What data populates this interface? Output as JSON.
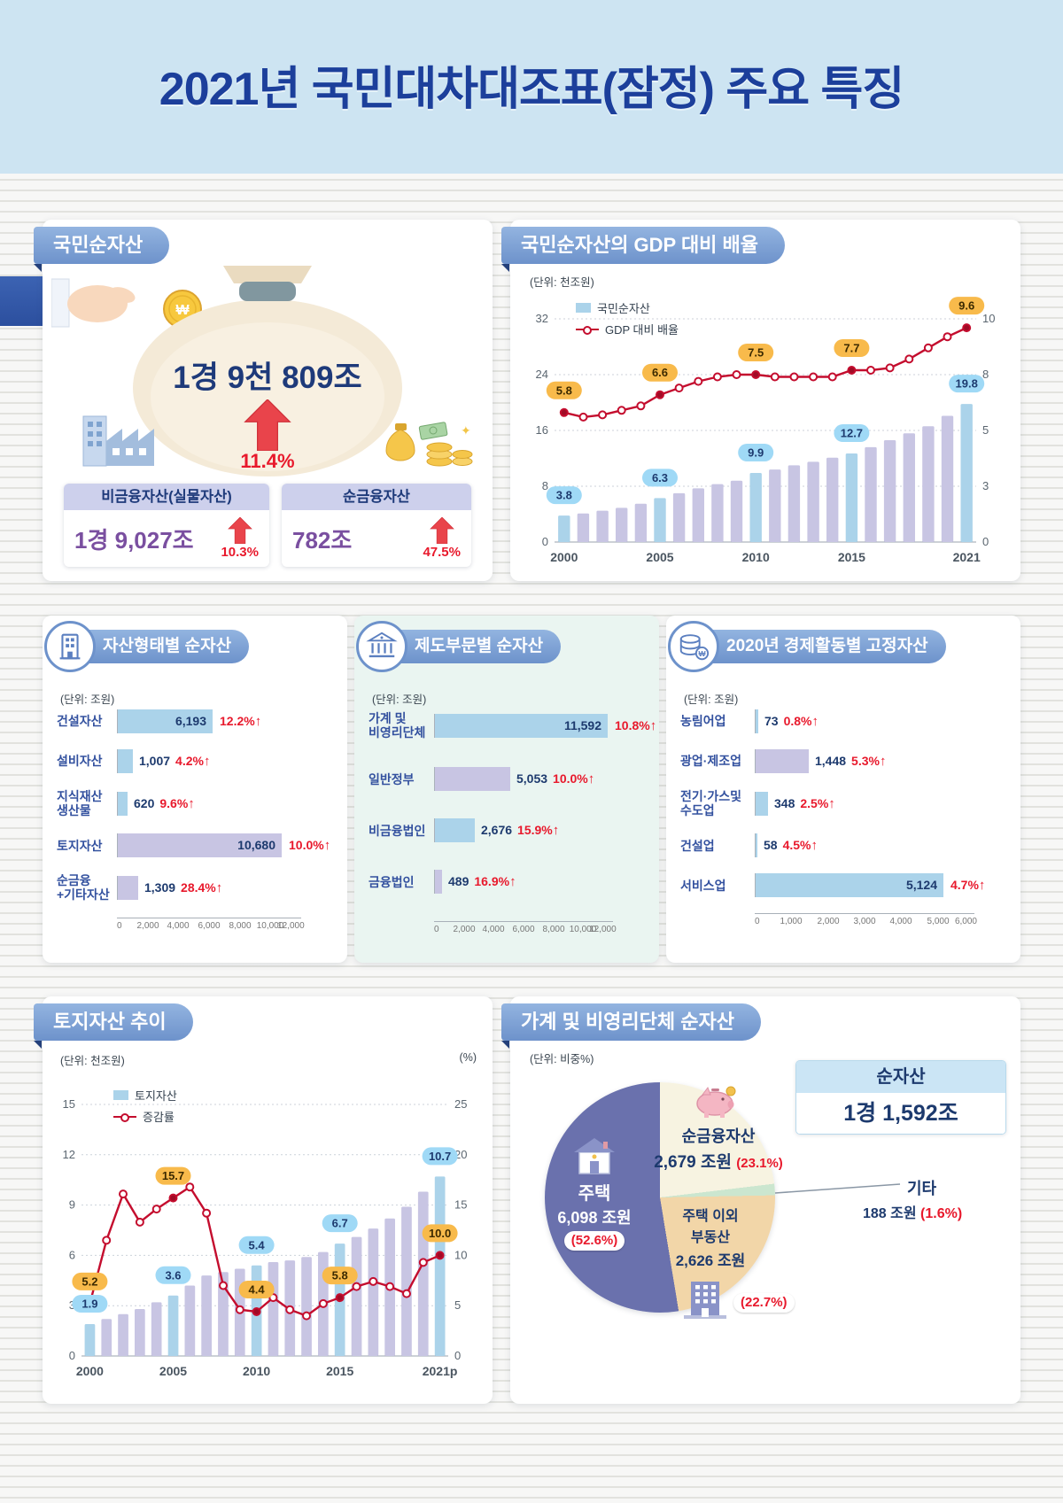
{
  "page": {
    "title": "2021년 국민대차대조표(잠정) 주요 특징"
  },
  "colors": {
    "bar_blue": "#abd3ea",
    "bar_purple": "#c8c5e3",
    "line_red": "#c40d2e",
    "marker_fill": "#a00b26",
    "callout_bar_bg": "#9fd9f6",
    "callout_line_bg": "#f8ba4b",
    "navy": "#1d3a6e",
    "red": "#e8192c"
  },
  "net_assets_panel": {
    "header": "국민순자산",
    "total_value": "1경 9천 809조",
    "total_growth": "11.4%",
    "cards": [
      {
        "label": "비금융자산(실물자산)",
        "value": "1경 9,027조",
        "growth": "10.3%"
      },
      {
        "label": "순금융자산",
        "value": "782조",
        "growth": "47.5%"
      }
    ]
  },
  "gdp_panel": {
    "header": "국민순자산의 GDP 대비 배율",
    "unit": "(단위: 천조원)",
    "legend_bar": "국민순자산",
    "legend_line": "GDP 대비 배율"
  },
  "asset_type_panel": {
    "header": "자산형태별 순자산",
    "unit": "(단위: 조원)"
  },
  "sector_panel": {
    "header": "제도부문별 순자산",
    "unit": "(단위: 조원)"
  },
  "activity_panel": {
    "header": "2020년 경제활동별 고정자산",
    "unit": "(단위: 조원)"
  },
  "land_panel": {
    "header": "토지자산 추이",
    "unit_left": "(단위: 천조원)",
    "unit_right": "(%)",
    "legend_bar": "토지자산",
    "legend_line": "증감률"
  },
  "household_panel": {
    "header": "가계 및 비영리단체 순자산",
    "unit": "(단위: 비중%)",
    "box_title": "순자산",
    "box_value": "1경 1,592조",
    "labels": {
      "financial_name": "순금융자산",
      "financial_value": "2,679 조원",
      "financial_pct": "(23.1%)",
      "housing_name": "주택",
      "housing_value": "6,098 조원",
      "housing_pct": "(52.6%)",
      "other_re_line1": "주택 이외",
      "other_re_line2": "부동산",
      "other_re_value": "2,626 조원",
      "other_re_pct": "(22.7%)",
      "etc_name": "기타",
      "etc_value": "188 조원",
      "etc_pct": "(1.6%)"
    }
  },
  "chart_data": [
    {
      "id": "gdp_combo",
      "type": "bar+line",
      "title": "국민순자산의 GDP 대비 배율",
      "x": [
        2000,
        2001,
        2002,
        2003,
        2004,
        2005,
        2006,
        2007,
        2008,
        2009,
        2010,
        2011,
        2012,
        2013,
        2014,
        2015,
        2016,
        2017,
        2018,
        2019,
        2020,
        2021
      ],
      "series": [
        {
          "name": "국민순자산",
          "type": "bar",
          "unit": "천조원",
          "values": [
            3.8,
            4.1,
            4.5,
            4.9,
            5.5,
            6.3,
            7.0,
            7.7,
            8.3,
            8.8,
            9.9,
            10.4,
            11.0,
            11.5,
            12.1,
            12.7,
            13.6,
            14.6,
            15.6,
            16.6,
            18.1,
            19.8
          ]
        },
        {
          "name": "GDP 대비 배율",
          "type": "line",
          "unit": "배",
          "values": [
            5.8,
            5.6,
            5.7,
            5.9,
            6.1,
            6.6,
            6.9,
            7.2,
            7.4,
            7.5,
            7.5,
            7.4,
            7.4,
            7.4,
            7.4,
            7.7,
            7.7,
            7.8,
            8.2,
            8.7,
            9.2,
            9.6
          ]
        }
      ],
      "labeled_years": [
        2000,
        2005,
        2010,
        2015,
        2021
      ],
      "x_tick_labels": [
        "2000",
        "2005",
        "2010",
        "2015",
        "2021"
      ],
      "bar_labels": {
        "2000": "3.8",
        "2005": "6.3",
        "2010": "9.9",
        "2015": "12.7",
        "2021": "19.8"
      },
      "line_labels": {
        "2000": "5.8",
        "2005": "6.6",
        "2010": "7.5",
        "2015": "7.7",
        "2021": "9.6"
      },
      "left_axis": [
        0,
        8,
        16,
        24,
        32
      ],
      "right_axis": [
        0,
        3,
        5,
        8,
        10
      ]
    },
    {
      "id": "asset_type",
      "type": "hbar",
      "title": "자산형태별 순자산",
      "categories": [
        [
          "건설자산"
        ],
        [
          "설비자산"
        ],
        [
          "지식재산",
          "생산물"
        ],
        [
          "토지자산"
        ],
        [
          "순금융",
          "+기타자산"
        ]
      ],
      "values": [
        6193,
        1007,
        620,
        10680,
        1309
      ],
      "value_labels": [
        "6,193",
        "1,007",
        "620",
        "10,680",
        "1,309"
      ],
      "growth_labels": [
        "12.2%",
        "4.2%",
        "9.6%",
        "10.0%",
        "28.4%"
      ],
      "colors": [
        "blue",
        "blue",
        "blue",
        "purple",
        "purple"
      ],
      "xlim": [
        0,
        12000
      ],
      "x_ticks": [
        "0",
        "2,000",
        "4,000",
        "6,000",
        "8,000",
        "10,000",
        "12,000"
      ]
    },
    {
      "id": "sector",
      "type": "hbar",
      "title": "제도부문별 순자산",
      "categories": [
        [
          "가계 및",
          "비영리단체"
        ],
        [
          "일반정부"
        ],
        [
          "비금융법인"
        ],
        [
          "금융법인"
        ]
      ],
      "values": [
        11592,
        5053,
        2676,
        489
      ],
      "value_labels": [
        "11,592",
        "5,053",
        "2,676",
        "489"
      ],
      "growth_labels": [
        "10.8%",
        "10.0%",
        "15.9%",
        "16.9%"
      ],
      "colors": [
        "blue",
        "purple",
        "blue",
        "purple"
      ],
      "xlim": [
        0,
        12000
      ],
      "x_ticks": [
        "0",
        "2,000",
        "4,000",
        "6,000",
        "8,000",
        "10,000",
        "12,000"
      ]
    },
    {
      "id": "activity",
      "type": "hbar",
      "title": "2020년 경제활동별 고정자산",
      "categories": [
        [
          "농림어업"
        ],
        [
          "광업·제조업"
        ],
        [
          "전기·가스및",
          "수도업"
        ],
        [
          "건설업"
        ],
        [
          "서비스업"
        ]
      ],
      "values": [
        73,
        1448,
        348,
        58,
        5124
      ],
      "value_labels": [
        "73",
        "1,448",
        "348",
        "58",
        "5,124"
      ],
      "growth_labels": [
        "0.8%",
        "5.3%",
        "2.5%",
        "4.5%",
        "4.7%"
      ],
      "colors": [
        "blue",
        "purple",
        "blue",
        "blue",
        "blue"
      ],
      "xlim": [
        0,
        6000
      ],
      "x_ticks": [
        "0",
        "1,000",
        "2,000",
        "3,000",
        "4,000",
        "5,000",
        "6,000"
      ]
    },
    {
      "id": "land_combo",
      "type": "bar+line",
      "title": "토지자산 추이",
      "x": [
        2000,
        2001,
        2002,
        2003,
        2004,
        2005,
        2006,
        2007,
        2008,
        2009,
        2010,
        2011,
        2012,
        2013,
        2014,
        2015,
        2016,
        2017,
        2018,
        2019,
        2020,
        2021
      ],
      "series": [
        {
          "name": "토지자산",
          "type": "bar",
          "unit": "천조원",
          "values": [
            1.9,
            2.2,
            2.5,
            2.8,
            3.2,
            3.6,
            4.2,
            4.8,
            5.0,
            5.2,
            5.4,
            5.6,
            5.7,
            5.9,
            6.2,
            6.7,
            7.1,
            7.6,
            8.2,
            8.9,
            9.8,
            10.7
          ]
        },
        {
          "name": "증감률",
          "type": "line",
          "unit": "%",
          "values": [
            5.2,
            11.5,
            16.1,
            13.3,
            14.6,
            15.7,
            16.8,
            14.2,
            7.0,
            4.6,
            4.4,
            5.8,
            4.6,
            4.0,
            5.2,
            5.8,
            6.9,
            7.4,
            6.9,
            6.2,
            9.3,
            10.0
          ]
        }
      ],
      "labeled_years": [
        2000,
        2005,
        2010,
        2015,
        2021
      ],
      "x_tick_labels": [
        "2000",
        "2005",
        "2010",
        "2015",
        "2021p"
      ],
      "bar_labels": {
        "2000": "1.9",
        "2005": "3.6",
        "2010": "5.4",
        "2015": "6.7",
        "2021": "10.7"
      },
      "line_labels": {
        "2000": "5.2",
        "2005": "15.7",
        "2010": "4.4",
        "2015": "5.8",
        "2021": "10.0"
      },
      "left_axis": [
        0,
        3,
        6,
        9,
        12,
        15
      ],
      "right_axis": [
        0,
        5,
        10,
        15,
        20,
        25
      ]
    },
    {
      "id": "household_pie",
      "type": "pie",
      "title": "가계 및 비영리단체 순자산 구성",
      "slices": [
        {
          "label": "순금융자산",
          "value_text": "2,679 조원",
          "pct": 23.1,
          "color": "#f7f3e1"
        },
        {
          "label": "기타",
          "value_text": "188 조원",
          "pct": 1.6,
          "color": "#cbe6cf"
        },
        {
          "label": "주택 이외 부동산",
          "value_text": "2,626 조원",
          "pct": 22.7,
          "color": "#f2d6a8"
        },
        {
          "label": "주택",
          "value_text": "6,098 조원",
          "pct": 52.6,
          "color": "#6a71ad"
        }
      ]
    }
  ]
}
